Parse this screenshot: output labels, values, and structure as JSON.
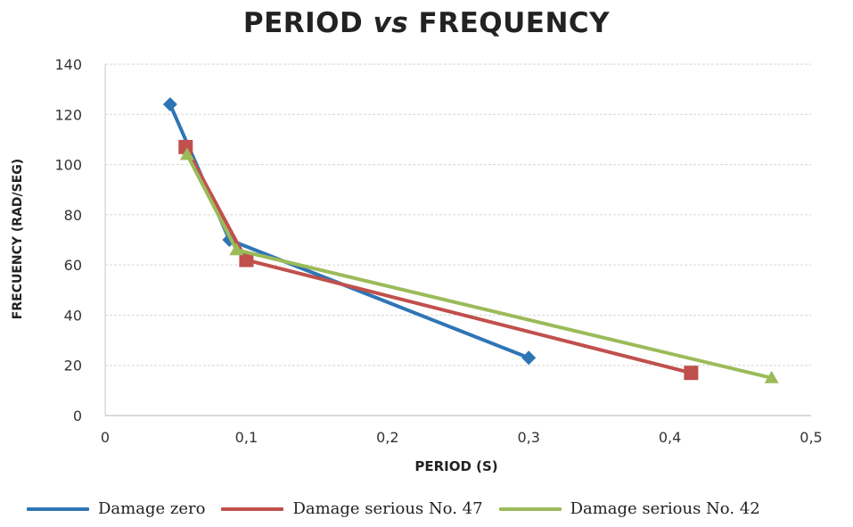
{
  "chart_data": {
    "type": "line",
    "title_main": "PERIOD ",
    "title_vs": "vs",
    "title_rest": " FREQUENCY",
    "xlabel": "PERIOD (S)",
    "ylabel": "FRECUENCY (RAD/SEG)",
    "xlim": [
      0,
      0.5
    ],
    "ylim": [
      0,
      140
    ],
    "xticks": [
      "0",
      "0,1",
      "0,2",
      "0,3",
      "0,4",
      "0,5"
    ],
    "yticks": [
      "0",
      "20",
      "40",
      "60",
      "80",
      "100",
      "120",
      "140"
    ],
    "grid": true,
    "legend_position": "bottom",
    "series": [
      {
        "name": "Damage zero",
        "color": "#2e75b6",
        "marker": "diamond",
        "x": [
          0.046,
          0.088,
          0.3
        ],
        "y": [
          124,
          70,
          23
        ]
      },
      {
        "name": "Damage serious No. 47",
        "color": "#c0504d",
        "marker": "square",
        "x": [
          0.057,
          0.1,
          0.415
        ],
        "y": [
          107,
          62,
          17
        ]
      },
      {
        "name": "Damage serious No. 42",
        "color": "#9bbb59",
        "marker": "triangle",
        "x": [
          0.058,
          0.093,
          0.472
        ],
        "y": [
          104,
          66,
          15
        ]
      }
    ]
  }
}
